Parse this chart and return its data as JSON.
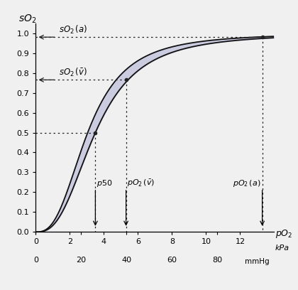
{
  "ylabel": "sO₂",
  "xlabel_kpa": "kPa",
  "xlabel_mmhg": "mmHg",
  "xlabel_po2": "pO₂",
  "xlim": [
    0,
    14
  ],
  "ylim": [
    0,
    1.05
  ],
  "x_ticks_kpa": [
    0,
    2,
    4,
    6,
    8,
    10,
    12
  ],
  "x_ticks_mmhg": [
    0,
    20,
    40,
    60,
    80
  ],
  "y_ticks": [
    0,
    0.1,
    0.2,
    0.3,
    0.4,
    0.5,
    0.6,
    0.7,
    0.8,
    0.9,
    1.0
  ],
  "hill_n": 2.7,
  "hill_p50_main": 3.5,
  "hill_p50_upper": 3.05,
  "curve_color": "#111111",
  "band_color": "#c8c8e0",
  "band_alpha": 0.9,
  "so2_a": 0.98,
  "so2_v": 0.765,
  "po2_a_kpa": 13.3,
  "po2_v_kpa": 5.3,
  "p50_kpa": 3.5,
  "dashed_color": "#222222",
  "figsize": [
    4.2,
    4.08
  ],
  "dpi": 100,
  "background": "#f0f0f0"
}
